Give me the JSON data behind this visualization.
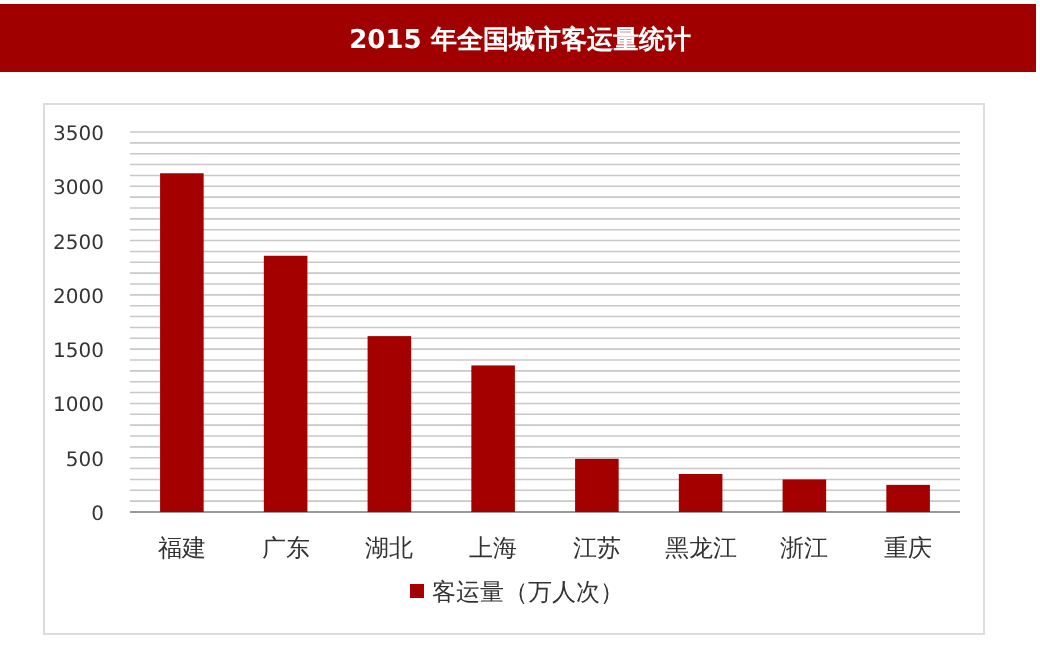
{
  "chart_data": {
    "type": "bar",
    "title": "2015 年全国城市客运量统计",
    "categories": [
      "福建",
      "广东",
      "湖北",
      "上海",
      "江苏",
      "黑龙江",
      "浙江",
      "重庆"
    ],
    "series": [
      {
        "name": "客运量（万人次）",
        "color": "#a50000",
        "values": [
          3120,
          2360,
          1620,
          1350,
          490,
          350,
          300,
          250
        ]
      }
    ],
    "ylim": [
      0,
      3500
    ],
    "yticks": [
      0,
      {
        "value": 100,
        "label": null
      },
      {
        "value": 200,
        "label": null
      },
      {
        "value": 300,
        "label": null
      },
      {
        "value": 400,
        "label": null
      },
      500,
      {
        "value": 600,
        "label": null
      },
      {
        "value": 700,
        "label": null
      },
      {
        "value": 800,
        "label": null
      },
      {
        "value": 900,
        "label": null
      },
      1000,
      {
        "value": 1100,
        "label": null
      },
      {
        "value": 1200,
        "label": null
      },
      {
        "value": 1300,
        "label": null
      },
      {
        "value": 1400,
        "label": null
      },
      1500,
      {
        "value": 1600,
        "label": null
      },
      {
        "value": 1700,
        "label": null
      },
      {
        "value": 1800,
        "label": null
      },
      {
        "value": 1900,
        "label": null
      },
      2000,
      {
        "value": 2100,
        "label": null
      },
      {
        "value": 2200,
        "label": null
      },
      {
        "value": 2300,
        "label": null
      },
      {
        "value": 2400,
        "label": null
      },
      2500,
      {
        "value": 2600,
        "label": null
      },
      {
        "value": 2700,
        "label": null
      },
      {
        "value": 2800,
        "label": null
      },
      {
        "value": 2900,
        "label": null
      },
      3000,
      {
        "value": 3100,
        "label": null
      },
      {
        "value": 3200,
        "label": null
      },
      {
        "value": 3300,
        "label": null
      },
      {
        "value": 3400,
        "label": null
      },
      3500
    ],
    "grid": "y",
    "legend": "bottom"
  }
}
